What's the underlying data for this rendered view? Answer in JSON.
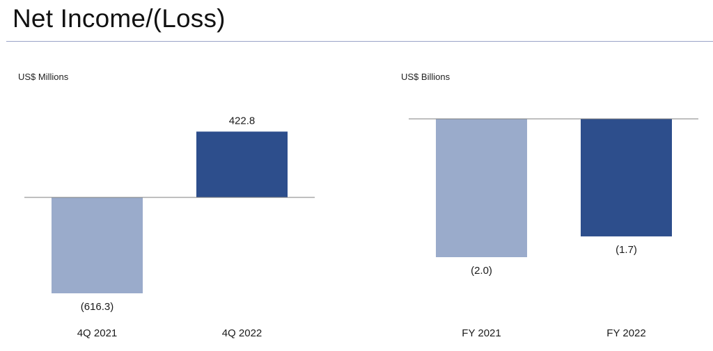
{
  "page": {
    "title": "Net Income/(Loss)"
  },
  "colors": {
    "prior_period": "#9aabcb",
    "current_period": "#2d4e8c",
    "title_rule": "#9aa3c7",
    "baseline": "#7f7f7f"
  },
  "chart_data": [
    {
      "type": "bar",
      "unit_label": "US$ Millions",
      "categories": [
        "4Q 2021",
        "4Q 2022"
      ],
      "values": [
        -616.3,
        422.8
      ],
      "value_labels": [
        "(616.3)",
        "422.8"
      ],
      "colors": [
        "#9aabcb",
        "#2d4e8c"
      ],
      "xlabel": "",
      "ylabel": "",
      "ylim": [
        -700,
        500
      ],
      "grid": false
    },
    {
      "type": "bar",
      "unit_label": "US$ Billions",
      "categories": [
        "FY 2021",
        "FY 2022"
      ],
      "values": [
        -2.0,
        -1.7
      ],
      "value_labels": [
        "(2.0)",
        "(1.7)"
      ],
      "colors": [
        "#9aabcb",
        "#2d4e8c"
      ],
      "xlabel": "",
      "ylabel": "",
      "ylim": [
        -2.2,
        0
      ],
      "grid": false
    }
  ]
}
